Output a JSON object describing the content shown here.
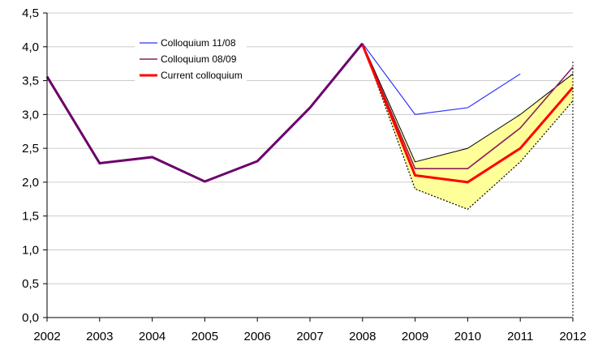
{
  "chart_data": {
    "type": "line",
    "categories": [
      "2002",
      "2003",
      "2004",
      "2005",
      "2006",
      "2007",
      "2008",
      "2009",
      "2010",
      "2011",
      "2012"
    ],
    "y_tick_labels": [
      "0,0",
      "0,5",
      "1,0",
      "1,5",
      "2,0",
      "2,5",
      "3,0",
      "3,5",
      "4,0",
      "4,5"
    ],
    "ylim": [
      0,
      4.5
    ],
    "grid": true,
    "legend_position": "top-left",
    "series": [
      {
        "name": "Colloquium 11/08",
        "color": "#3333ff",
        "width": 1.2,
        "values": [
          null,
          null,
          null,
          null,
          null,
          null,
          4.05,
          3.0,
          3.1,
          3.6,
          null
        ]
      },
      {
        "name": "Colloquium 08/09",
        "color": "#8b1f5e",
        "width": 1.6,
        "values": [
          null,
          null,
          null,
          null,
          null,
          null,
          4.04,
          2.2,
          2.2,
          2.8,
          3.7
        ]
      },
      {
        "name": "Current colloquium",
        "color": "#ff0000",
        "width": 3,
        "values": [
          null,
          null,
          null,
          null,
          null,
          null,
          4.03,
          2.1,
          2.0,
          2.5,
          3.4
        ]
      },
      {
        "name": "",
        "color": "#6b006b",
        "width": 3,
        "values": [
          3.56,
          2.28,
          2.37,
          2.01,
          2.31,
          3.1,
          4.05,
          null,
          null,
          null,
          null
        ]
      }
    ],
    "band": {
      "color": "#ffff99",
      "upper": [
        null,
        null,
        null,
        null,
        null,
        null,
        4.05,
        2.3,
        2.5,
        3.0,
        3.6
      ],
      "lower": [
        null,
        null,
        null,
        null,
        null,
        null,
        4.05,
        1.9,
        1.6,
        2.3,
        3.2
      ]
    }
  }
}
